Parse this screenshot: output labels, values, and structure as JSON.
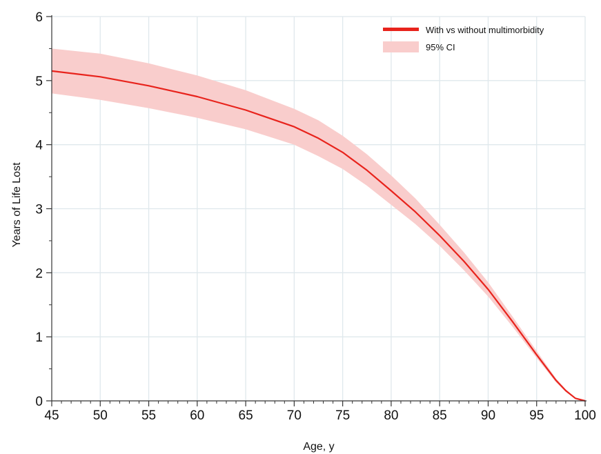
{
  "chart_data": {
    "type": "line",
    "title": "",
    "xlabel": "Age, y",
    "ylabel": "Years of Life Lost",
    "xlim": [
      45,
      100
    ],
    "ylim": [
      0,
      6
    ],
    "x_ticks": [
      45,
      50,
      55,
      60,
      65,
      70,
      75,
      80,
      85,
      90,
      95,
      100
    ],
    "y_ticks": [
      0,
      1,
      2,
      3,
      4,
      5,
      6
    ],
    "grid": true,
    "legend_position": "top-right",
    "colors": {
      "line": "#e8231c",
      "ci_band": "#f9cdcc",
      "grid": "#dfe8ec",
      "axis": "#333333"
    },
    "series": [
      {
        "name": "With vs without multimorbidity",
        "x": [
          45,
          50,
          55,
          60,
          65,
          70,
          72.5,
          75,
          77.5,
          80,
          82.5,
          85,
          87.5,
          90,
          92.5,
          95,
          97,
          98,
          99,
          100
        ],
        "y": [
          5.15,
          5.06,
          4.92,
          4.75,
          4.54,
          4.28,
          4.1,
          3.88,
          3.6,
          3.28,
          2.95,
          2.58,
          2.18,
          1.74,
          1.24,
          0.72,
          0.32,
          0.16,
          0.04,
          0.0
        ]
      }
    ],
    "ci_band": {
      "name": "95% CI",
      "x": [
        45,
        50,
        55,
        60,
        65,
        70,
        72.5,
        75,
        77.5,
        80,
        82.5,
        85,
        87.5,
        90,
        92.5,
        95,
        97,
        98,
        99,
        100
      ],
      "lower": [
        4.8,
        4.7,
        4.57,
        4.42,
        4.24,
        4.0,
        3.82,
        3.62,
        3.36,
        3.06,
        2.76,
        2.42,
        2.04,
        1.63,
        1.16,
        0.67,
        0.29,
        0.14,
        0.03,
        0.0
      ],
      "upper": [
        5.5,
        5.42,
        5.27,
        5.08,
        4.85,
        4.56,
        4.38,
        4.14,
        3.85,
        3.52,
        3.16,
        2.75,
        2.32,
        1.85,
        1.32,
        0.78,
        0.35,
        0.18,
        0.05,
        0.0
      ]
    }
  }
}
